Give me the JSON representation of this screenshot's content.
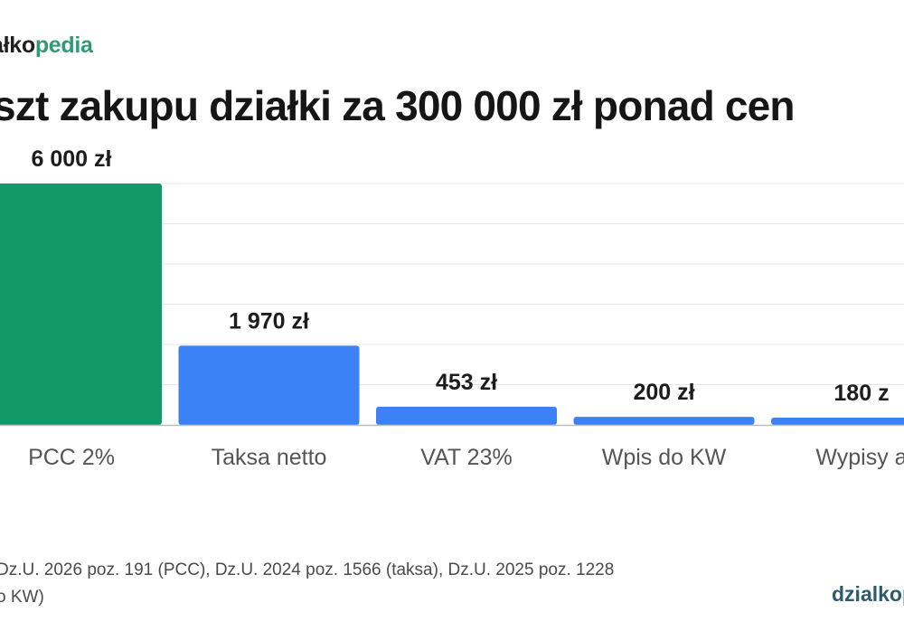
{
  "brand": {
    "part1": "ałko",
    "part2": "pedia",
    "accent_color": "#2f9a77"
  },
  "title": "szt zakupu działki za 300 000 zł ponad cen",
  "chart_data": {
    "type": "bar",
    "categories": [
      "PCC 2%",
      "Taksa netto",
      "VAT 23%",
      "Wpis do KW",
      "Wypisy a"
    ],
    "values": [
      6000,
      1970,
      453,
      200,
      180
    ],
    "value_labels": [
      "6 000 zł",
      "1 970 zł",
      "453 zł",
      "200 zł",
      "180 z"
    ],
    "colors": [
      "#12996a",
      "#3b82f6",
      "#3b82f6",
      "#3b82f6",
      "#3b82f6"
    ],
    "ylim": [
      0,
      6000
    ],
    "grid": true
  },
  "source": {
    "line1": "Dz.U. 2026 poz. 191 (PCC), Dz.U. 2024 poz. 1566 (taksa), Dz.U. 2025 poz. 1228",
    "line2": "o KW)"
  },
  "footer_brand": "dzialkop"
}
